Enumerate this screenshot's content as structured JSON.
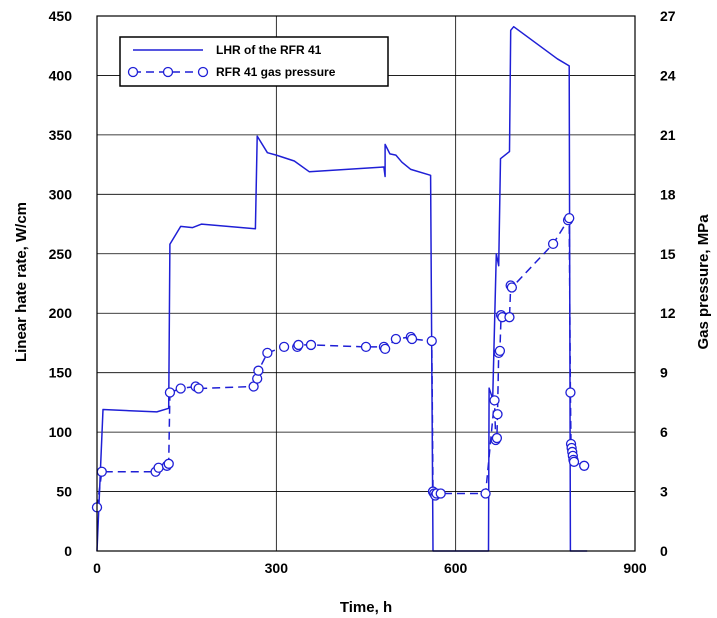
{
  "chart_data": {
    "type": "line",
    "title": "",
    "xlabel": "Time, h",
    "ylabel": "Linear hate rate, W/cm",
    "y2label": "Gas pressure, MPa",
    "xlim": [
      0,
      900
    ],
    "ylim": [
      0,
      450
    ],
    "y2lim": [
      0,
      27
    ],
    "xticks": [
      0,
      300,
      600,
      900
    ],
    "yticks": [
      0,
      50,
      100,
      150,
      200,
      250,
      300,
      350,
      400,
      450
    ],
    "y2ticks": [
      0,
      3,
      6,
      9,
      12,
      15,
      18,
      21,
      24,
      27
    ],
    "grid": true,
    "legend_position": "top-left",
    "series": [
      {
        "name": "LHR of the RFR 41",
        "axis": "left",
        "color": "#1f1fd6",
        "style": "solid",
        "marker": "none",
        "x": [
          0,
          10,
          100,
          120,
          122,
          140,
          160,
          175,
          265,
          268,
          285,
          300,
          330,
          355,
          480,
          482,
          482,
          490,
          500,
          510,
          525,
          558,
          562,
          568,
          650,
          655,
          656,
          662,
          668,
          672,
          675,
          680,
          690,
          692,
          697,
          770,
          790,
          792,
          795,
          820
        ],
        "y": [
          0,
          119,
          117,
          120,
          258,
          273,
          272,
          275,
          271,
          349,
          335,
          333,
          328,
          319,
          323,
          315,
          342,
          334,
          333,
          327,
          321,
          316,
          0,
          0,
          0,
          0,
          137,
          128,
          250,
          240,
          330,
          332,
          336,
          438,
          441,
          414,
          408,
          0,
          0,
          0
        ]
      },
      {
        "name": "RFR 41 gas pressure",
        "axis": "right",
        "color": "#1f1fd6",
        "style": "dashed",
        "marker": "circle",
        "x": [
          0,
          8,
          98,
          103,
          117,
          120,
          122,
          140,
          165,
          170,
          262,
          268,
          270,
          285,
          313,
          335,
          337,
          358,
          450,
          480,
          482,
          500,
          525,
          527,
          560,
          562,
          564,
          566,
          568,
          575,
          650,
          665,
          667,
          669,
          670,
          672,
          674,
          676,
          678,
          690,
          692,
          694,
          763,
          788,
          790,
          792,
          793,
          794,
          795,
          796,
          797,
          798,
          815
        ],
        "y": [
          2.2,
          4.0,
          4.0,
          4.2,
          4.3,
          4.4,
          8.0,
          8.2,
          8.3,
          8.2,
          8.3,
          8.7,
          9.1,
          10.0,
          10.3,
          10.3,
          10.4,
          10.4,
          10.3,
          10.3,
          10.2,
          10.7,
          10.8,
          10.7,
          10.6,
          3.0,
          2.9,
          2.8,
          2.9,
          2.9,
          2.9,
          7.6,
          5.6,
          5.7,
          6.9,
          10.0,
          10.1,
          11.9,
          11.8,
          11.8,
          13.4,
          13.3,
          15.5,
          16.7,
          16.8,
          8.0,
          5.4,
          5.2,
          5.0,
          4.8,
          4.6,
          4.5,
          4.3
        ]
      }
    ]
  }
}
